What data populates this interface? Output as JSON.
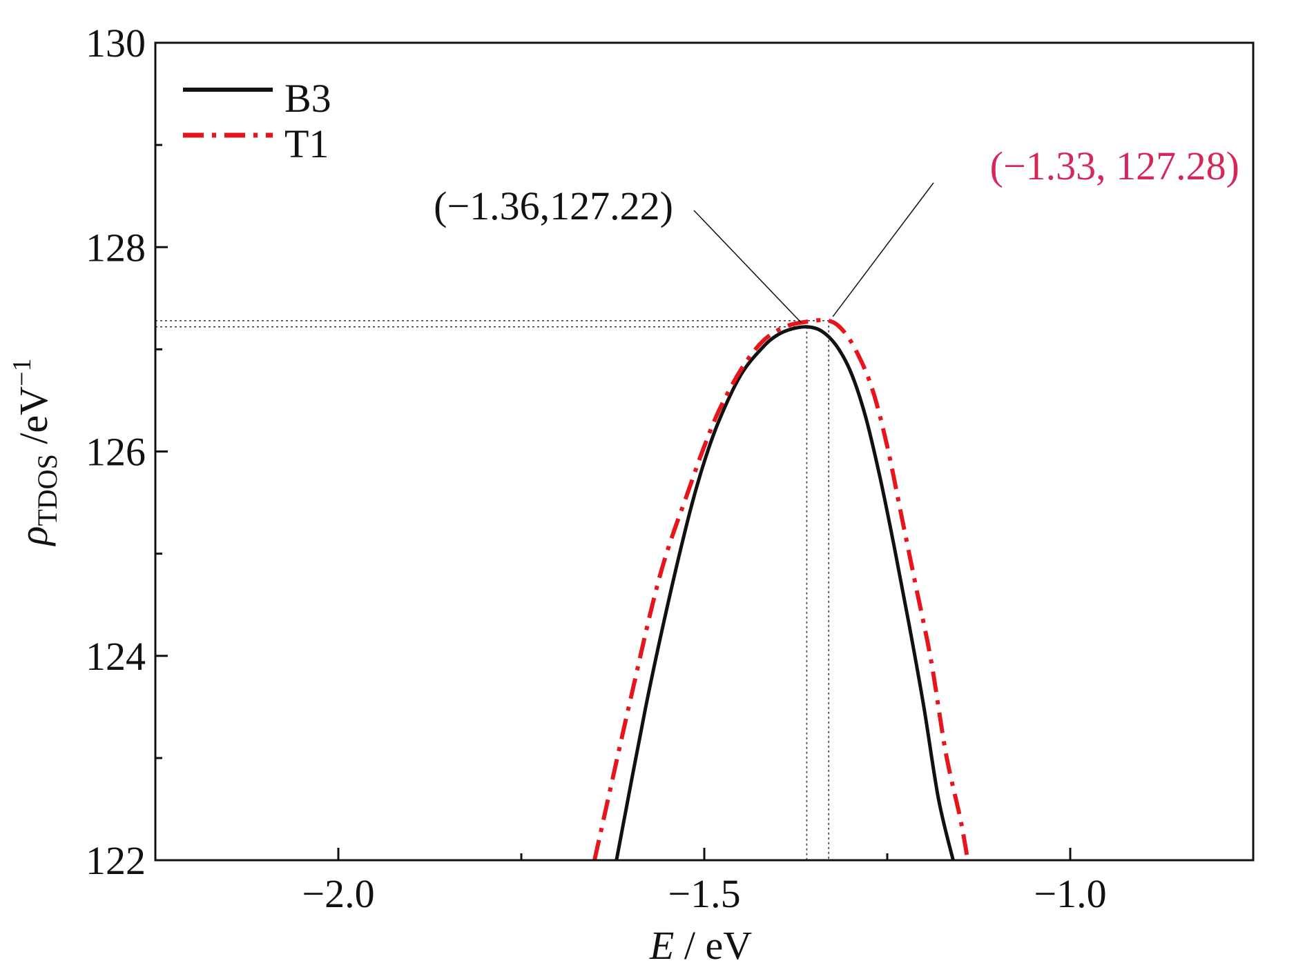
{
  "chart_data": {
    "type": "line",
    "xlabel": {
      "var": "E",
      "unit": " / eV"
    },
    "ylabel": {
      "var": "ρ",
      "sub": "TDOS",
      "unit": " /eV",
      "sup": "−1"
    },
    "xlim": [
      -2.25,
      -0.75
    ],
    "ylim": [
      122,
      130
    ],
    "x_ticks": [
      {
        "value": -2.0,
        "label": "−2.0"
      },
      {
        "value": -1.5,
        "label": "−1.5"
      },
      {
        "value": -1.0,
        "label": "−1.0"
      }
    ],
    "x_minor_ticks": [
      -1.75,
      -1.25
    ],
    "y_ticks": [
      {
        "value": 122,
        "label": "122"
      },
      {
        "value": 124,
        "label": "124"
      },
      {
        "value": 126,
        "label": "126"
      },
      {
        "value": 128,
        "label": "128"
      },
      {
        "value": 130,
        "label": "130"
      }
    ],
    "y_minor_ticks": [
      123,
      125,
      127,
      129
    ],
    "legend_position": "top-left",
    "series": [
      {
        "name": "B3",
        "color": "#111111",
        "style": "solid",
        "x": [
          -1.62,
          -1.58,
          -1.55,
          -1.52,
          -1.5,
          -1.48,
          -1.45,
          -1.42,
          -1.4,
          -1.38,
          -1.36,
          -1.34,
          -1.32,
          -1.3,
          -1.28,
          -1.26,
          -1.24,
          -1.22,
          -1.2,
          -1.18,
          -1.16
        ],
        "y": [
          122.0,
          123.5,
          124.5,
          125.4,
          125.9,
          126.3,
          126.75,
          127.02,
          127.14,
          127.2,
          127.22,
          127.18,
          127.04,
          126.78,
          126.35,
          125.75,
          125.05,
          124.3,
          123.5,
          122.6,
          122.0
        ]
      },
      {
        "name": "T1",
        "color": "#e8141c",
        "style": "dashdot",
        "x": [
          -1.65,
          -1.6,
          -1.56,
          -1.52,
          -1.5,
          -1.48,
          -1.45,
          -1.42,
          -1.39,
          -1.36,
          -1.33,
          -1.31,
          -1.29,
          -1.27,
          -1.25,
          -1.23,
          -1.21,
          -1.19,
          -1.17,
          -1.15,
          -1.14
        ],
        "y": [
          122.0,
          123.6,
          124.8,
          125.65,
          126.05,
          126.4,
          126.8,
          127.08,
          127.22,
          127.27,
          127.28,
          127.18,
          126.95,
          126.6,
          126.05,
          125.35,
          124.65,
          123.95,
          123.05,
          122.4,
          122.0
        ]
      }
    ],
    "annotations": [
      {
        "text": "(−1.36,127.22)",
        "x": -1.36,
        "y": 127.22,
        "color": "#111111"
      },
      {
        "text": "(−1.33, 127.28)",
        "x": -1.33,
        "y": 127.28,
        "color": "#d4285a"
      }
    ]
  }
}
